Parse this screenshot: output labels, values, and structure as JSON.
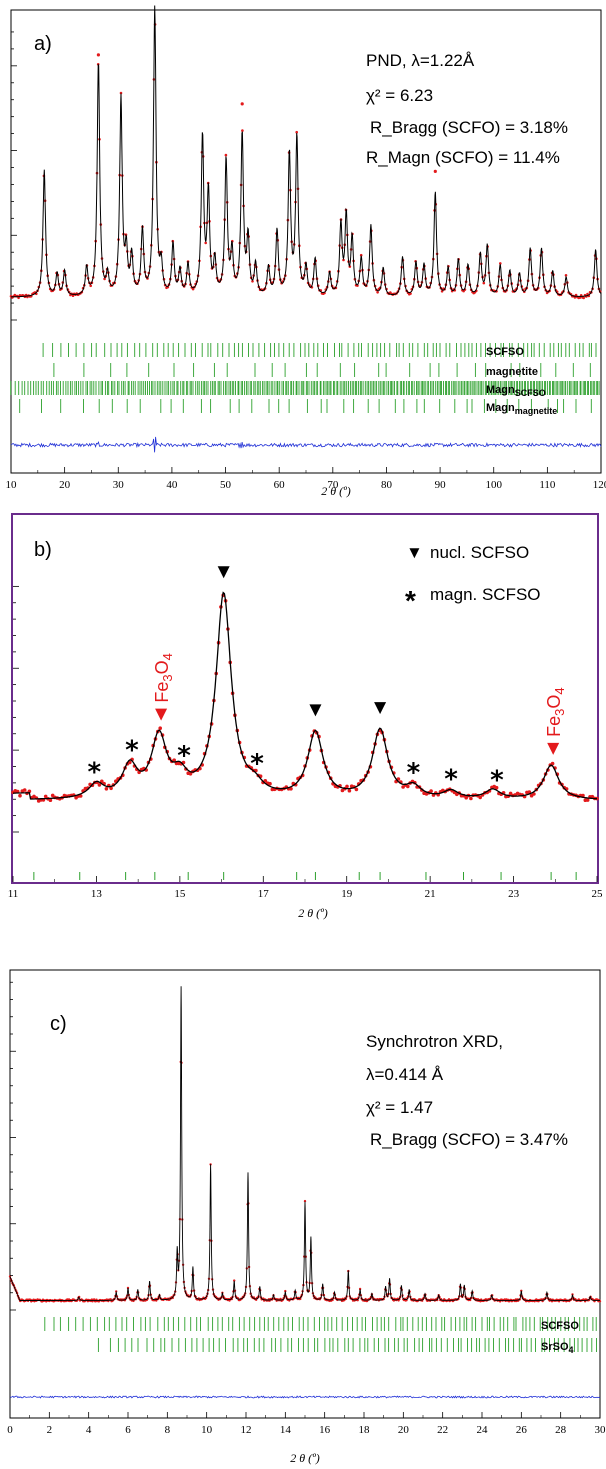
{
  "chart_data": [
    {
      "type": "line",
      "panel_label": "a)",
      "annotations": [
        "PND, λ=1.22Å",
        "χ² = 6.23",
        "R_Bragg (SCFO) = 3.18%",
        "R_Magn (SCFO) = 11.4%"
      ],
      "xlabel": "2 θ (º)",
      "ylabel": "",
      "xlim": [
        10,
        120
      ],
      "xticks": [
        "10",
        "20",
        "30",
        "40",
        "50",
        "60",
        "70",
        "80",
        "90",
        "100",
        "110",
        "120"
      ],
      "series": [
        {
          "role": "observed",
          "color": "#e31a1c"
        },
        {
          "role": "calculated",
          "color": "#000000"
        },
        {
          "role": "difference",
          "color": "#1f2fd6"
        }
      ],
      "baseline": 1.0,
      "peaks": [
        [
          16.2,
          4.5
        ],
        [
          18.6,
          0.8
        ],
        [
          20,
          0.9
        ],
        [
          24.1,
          1.0
        ],
        [
          26.3,
          8.3
        ],
        [
          28,
          0.7
        ],
        [
          30.5,
          7.0
        ],
        [
          31.5,
          1.5
        ],
        [
          32.5,
          1.4
        ],
        [
          34.5,
          2.3
        ],
        [
          36.8,
          10.2
        ],
        [
          38,
          1.0
        ],
        [
          40.2,
          1.8
        ],
        [
          41.5,
          0.9
        ],
        [
          43,
          1.1
        ],
        [
          45.7,
          5.6
        ],
        [
          46.8,
          3.6
        ],
        [
          48,
          1.2
        ],
        [
          50.1,
          4.8
        ],
        [
          51.2,
          1.5
        ],
        [
          53.1,
          5.7
        ],
        [
          54.2,
          2.0
        ],
        [
          55.6,
          1.1
        ],
        [
          58,
          1.0
        ],
        [
          59.6,
          2.3
        ],
        [
          61.9,
          5.0
        ],
        [
          63.3,
          5.6
        ],
        [
          65,
          1.0
        ],
        [
          66.7,
          1.3
        ],
        [
          69.4,
          0.8
        ],
        [
          71.5,
          2.5
        ],
        [
          72.5,
          2.8
        ],
        [
          73.6,
          2.0
        ],
        [
          75.3,
          1.3
        ],
        [
          77.1,
          2.5
        ],
        [
          79.4,
          1.0
        ],
        [
          83,
          1.4
        ],
        [
          85.5,
          1.2
        ],
        [
          87,
          1.1
        ],
        [
          89.1,
          3.7
        ],
        [
          91.5,
          1.0
        ],
        [
          93.4,
          1.3
        ],
        [
          95.2,
          1.1
        ],
        [
          97.5,
          1.5
        ],
        [
          98.8,
          1.8
        ],
        [
          101.2,
          1.1
        ],
        [
          103,
          0.9
        ],
        [
          104.8,
          0.8
        ],
        [
          106.8,
          1.7
        ],
        [
          108.9,
          1.7
        ],
        [
          111,
          0.9
        ],
        [
          113.5,
          0.7
        ],
        [
          119,
          1.7
        ]
      ],
      "obs_above_calc": [
        [
          36.8,
          0.7
        ],
        [
          53.1,
          0.9
        ],
        [
          89.1,
          0.7
        ],
        [
          26.3,
          0.2
        ]
      ],
      "diff_spikes": [
        [
          36.8,
          1.2
        ],
        [
          52.9,
          0.5
        ],
        [
          26.3,
          0.2
        ]
      ],
      "tick_rows": [
        {
          "label": "SCFSO",
          "sub": "",
          "n": 110,
          "start": 16
        },
        {
          "label": "magnetite",
          "sub": "",
          "n": 30,
          "start": 18
        },
        {
          "label": "Magn",
          "sub": "SCFSO",
          "n": 330,
          "start": 10
        },
        {
          "label": "Magn",
          "sub": "magnetite",
          "n": 44,
          "start": 12
        }
      ]
    },
    {
      "type": "line",
      "panel_label": "b)",
      "xlabel": "2 θ (º)",
      "ylabel": "",
      "xlim": [
        11,
        25
      ],
      "xticks": [
        "11",
        "13",
        "15",
        "17",
        "19",
        "21",
        "23",
        "25"
      ],
      "legend": [
        {
          "marker": "▼",
          "label": "nucl. SCFSO"
        },
        {
          "marker": "*",
          "label": "magn. SCFSO"
        }
      ],
      "fe_label": "Fe",
      "fe_sub": "3",
      "fe_label2": "O",
      "fe_sub2": "4",
      "series": [
        {
          "role": "observed",
          "color": "#e31a1c"
        },
        {
          "role": "calculated",
          "color": "#000000"
        }
      ],
      "baseline": 1.0,
      "peaks": [
        [
          13.0,
          0.45
        ],
        [
          13.8,
          1.0
        ],
        [
          14.5,
          1.9
        ],
        [
          15.0,
          0.6
        ],
        [
          16.05,
          6.5
        ],
        [
          16.8,
          0.3
        ],
        [
          18.25,
          2.1
        ],
        [
          19.8,
          2.2
        ],
        [
          20.6,
          0.35
        ],
        [
          21.5,
          0.25
        ],
        [
          22.5,
          0.3
        ],
        [
          23.9,
          1.1
        ]
      ],
      "star_markers": [
        12.95,
        13.85,
        15.1,
        16.85,
        20.6,
        21.5,
        22.6
      ],
      "triangle_markers": [
        16.05,
        18.25,
        19.8
      ],
      "fe_markers": [
        14.55,
        23.95
      ],
      "bottom_ticks": [
        11.5,
        12.6,
        13.7,
        14.4,
        15.2,
        16.05,
        17.8,
        18.25,
        19.3,
        19.8,
        20.9,
        21.8,
        22.7,
        23.9,
        24.5
      ]
    },
    {
      "type": "line",
      "panel_label": "c)",
      "annotations": [
        "Synchrotron XRD,",
        "λ=0.414 Å",
        "χ² = 1.47",
        "R_Bragg (SCFO) = 3.47%"
      ],
      "xlabel": "2 θ (º)",
      "ylabel": "",
      "xlim": [
        0,
        30
      ],
      "xticks": [
        "0",
        "2",
        "4",
        "6",
        "8",
        "10",
        "12",
        "14",
        "16",
        "18",
        "20",
        "22",
        "24",
        "26",
        "28",
        "30"
      ],
      "series": [
        {
          "role": "observed",
          "color": "#e31a1c"
        },
        {
          "role": "calculated",
          "color": "#000000"
        },
        {
          "role": "difference",
          "color": "#1f2fd6"
        }
      ],
      "baseline": 1.0,
      "peaks": [
        [
          3.5,
          0.25
        ],
        [
          5.4,
          0.6
        ],
        [
          6,
          0.9
        ],
        [
          6.5,
          0.8
        ],
        [
          7.1,
          1.4
        ],
        [
          7.6,
          0.4
        ],
        [
          8.5,
          3.3
        ],
        [
          8.7,
          23.0
        ],
        [
          9.3,
          2.4
        ],
        [
          10.2,
          10.0
        ],
        [
          10.8,
          0.5
        ],
        [
          11.4,
          1.4
        ],
        [
          12.1,
          9.4
        ],
        [
          12.7,
          1.0
        ],
        [
          13.4,
          0.4
        ],
        [
          14,
          0.6
        ],
        [
          14.5,
          0.7
        ],
        [
          15,
          7.2
        ],
        [
          15.3,
          4.6
        ],
        [
          15.9,
          1.2
        ],
        [
          16.5,
          0.6
        ],
        [
          17.2,
          2.2
        ],
        [
          17.8,
          0.8
        ],
        [
          18.4,
          0.5
        ],
        [
          19.1,
          1.0
        ],
        [
          19.3,
          1.6
        ],
        [
          19.9,
          1.1
        ],
        [
          20.3,
          0.8
        ],
        [
          21.1,
          0.5
        ],
        [
          21.8,
          0.4
        ],
        [
          22.9,
          1.2
        ],
        [
          23.1,
          1.1
        ],
        [
          23.5,
          0.7
        ],
        [
          24.5,
          0.4
        ],
        [
          26,
          0.7
        ],
        [
          27.3,
          0.6
        ],
        [
          28.6,
          0.4
        ],
        [
          29.5,
          0.3
        ]
      ],
      "tick_rows": [
        {
          "label": "SCFSO",
          "sub": "",
          "n": 110,
          "start": 1.7
        },
        {
          "label": "SrSO",
          "sub": "4",
          "n": 95,
          "start": 4.5
        }
      ]
    }
  ]
}
